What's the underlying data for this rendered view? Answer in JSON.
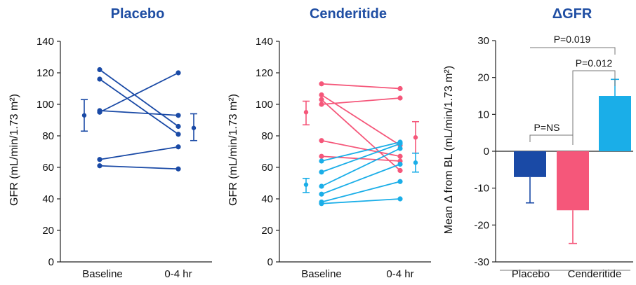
{
  "colors": {
    "placebo": "#1a4aa6",
    "pink": "#f5577a",
    "cyan": "#1aaee8",
    "title": "#1f4ea3"
  },
  "chart_data": [
    {
      "type": "line",
      "title": "Placebo",
      "ylabel": "GFR (mL/min/1.73 m²)",
      "categories": [
        "Baseline",
        "0-4 hr"
      ],
      "ylim": [
        0,
        140
      ],
      "yticks": [
        0,
        20,
        40,
        60,
        80,
        100,
        120,
        140
      ],
      "series": [
        {
          "values": [
            122,
            86
          ],
          "color": "placebo"
        },
        {
          "values": [
            116,
            81
          ],
          "color": "placebo"
        },
        {
          "values": [
            96,
            93
          ],
          "color": "placebo"
        },
        {
          "values": [
            95,
            120
          ],
          "color": "placebo"
        },
        {
          "values": [
            65,
            73
          ],
          "color": "placebo"
        },
        {
          "values": [
            61,
            59
          ],
          "color": "placebo"
        }
      ],
      "summary": [
        {
          "at": "Baseline",
          "mean": 93,
          "low": 83,
          "high": 103,
          "color": "placebo"
        },
        {
          "at": "0-4 hr",
          "mean": 85,
          "low": 77,
          "high": 94,
          "color": "placebo"
        }
      ]
    },
    {
      "type": "line",
      "title": "Cenderitide",
      "ylabel": "GFR (mL/min/1.73 m²)",
      "categories": [
        "Baseline",
        "0-4 hr"
      ],
      "ylim": [
        0,
        140
      ],
      "yticks": [
        0,
        20,
        40,
        60,
        80,
        100,
        120,
        140
      ],
      "series": [
        {
          "values": [
            113,
            110
          ],
          "color": "pink"
        },
        {
          "values": [
            106,
            74
          ],
          "color": "pink"
        },
        {
          "values": [
            103,
            58
          ],
          "color": "pink"
        },
        {
          "values": [
            100,
            104
          ],
          "color": "pink"
        },
        {
          "values": [
            77,
            67
          ],
          "color": "pink"
        },
        {
          "values": [
            67,
            64
          ],
          "color": "pink"
        },
        {
          "values": [
            64,
            76
          ],
          "color": "cyan"
        },
        {
          "values": [
            57,
            75
          ],
          "color": "cyan"
        },
        {
          "values": [
            48,
            72
          ],
          "color": "cyan"
        },
        {
          "values": [
            43,
            62
          ],
          "color": "cyan"
        },
        {
          "values": [
            38,
            51
          ],
          "color": "cyan"
        },
        {
          "values": [
            37,
            40
          ],
          "color": "cyan"
        }
      ],
      "summary": [
        {
          "at": "Baseline",
          "mean": 95,
          "low": 87,
          "high": 102,
          "color": "pink",
          "side": "left"
        },
        {
          "at": "Baseline",
          "mean": 49,
          "low": 44,
          "high": 53,
          "color": "cyan",
          "side": "left"
        },
        {
          "at": "0-4 hr",
          "mean": 79,
          "low": 69,
          "high": 89,
          "color": "pink",
          "side": "right"
        },
        {
          "at": "0-4 hr",
          "mean": 63,
          "low": 57,
          "high": 69,
          "color": "cyan",
          "side": "right"
        }
      ]
    },
    {
      "type": "bar",
      "title": "ΔGFR",
      "ylabel": "Mean Δ from BL (mL/min/1.73 m²)",
      "categories": [
        "Placebo",
        "Cenderitide"
      ],
      "ylim": [
        -30,
        30
      ],
      "yticks": [
        -30,
        -20,
        -10,
        0,
        10,
        20,
        30
      ],
      "bars": [
        {
          "value": -7,
          "error": 7,
          "color": "placebo"
        },
        {
          "value": -16,
          "error": 9,
          "color": "pink"
        },
        {
          "value": 15,
          "error": 4.5,
          "color": "cyan"
        }
      ],
      "annotations": [
        "P=NS",
        "P=0.012",
        "P=0.019"
      ]
    }
  ]
}
